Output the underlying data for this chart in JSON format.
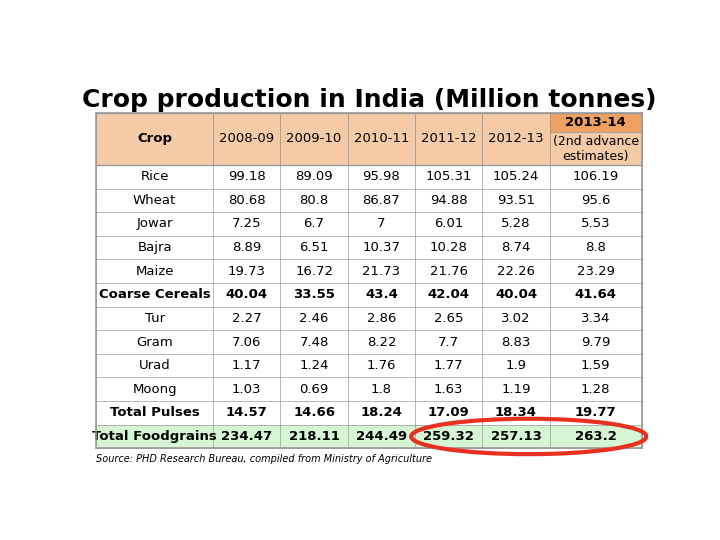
{
  "title": "Crop production in India (Million tonnes)",
  "source": "Source: PHD Research Bureau, compiled from Ministry of Agriculture",
  "rows": [
    [
      "Crop",
      "2008-09",
      "2009-10",
      "2010-11",
      "2011-12",
      "2012-13",
      "estimates)"
    ],
    [
      "Rice",
      "99.18",
      "89.09",
      "95.98",
      "105.31",
      "105.24",
      "106.19"
    ],
    [
      "Wheat",
      "80.68",
      "80.8",
      "86.87",
      "94.88",
      "93.51",
      "95.6"
    ],
    [
      "Jowar",
      "7.25",
      "6.7",
      "7",
      "6.01",
      "5.28",
      "5.53"
    ],
    [
      "Bajra",
      "8.89",
      "6.51",
      "10.37",
      "10.28",
      "8.74",
      "8.8"
    ],
    [
      "Maize",
      "19.73",
      "16.72",
      "21.73",
      "21.76",
      "22.26",
      "23.29"
    ],
    [
      "Coarse Cereals",
      "40.04",
      "33.55",
      "43.4",
      "42.04",
      "40.04",
      "41.64"
    ],
    [
      "Tur",
      "2.27",
      "2.46",
      "2.86",
      "2.65",
      "3.02",
      "3.34"
    ],
    [
      "Gram",
      "7.06",
      "7.48",
      "8.22",
      "7.7",
      "8.83",
      "9.79"
    ],
    [
      "Urad",
      "1.17",
      "1.24",
      "1.76",
      "1.77",
      "1.9",
      "1.59"
    ],
    [
      "Moong",
      "1.03",
      "0.69",
      "1.8",
      "1.63",
      "1.19",
      "1.28"
    ],
    [
      "Total Pulses",
      "14.57",
      "14.66",
      "18.24",
      "17.09",
      "18.34",
      "19.77"
    ],
    [
      "Total Foodgrains",
      "234.47",
      "218.11",
      "244.49",
      "259.32",
      "257.13",
      "263.2"
    ]
  ],
  "header_bg_light": "#F5CBA7",
  "header_bg_dark": "#F0A060",
  "white": "#FFFFFF",
  "light_green": "#D5F5D5",
  "bold_rows_idx": [
    6,
    11,
    12
  ],
  "circle_color": "#E83020",
  "title_fontsize": 18,
  "cell_fontsize": 9.5,
  "col_widths_rel": [
    1.65,
    0.95,
    0.95,
    0.95,
    0.95,
    0.95,
    1.3
  ]
}
